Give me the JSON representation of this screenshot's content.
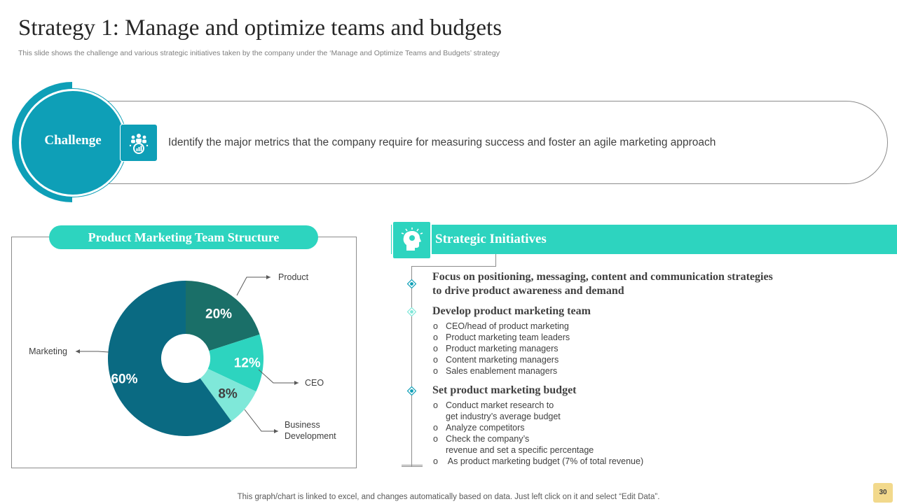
{
  "header": {
    "title": "Strategy 1: Manage and optimize teams and budgets",
    "subtitle": "This slide shows the challenge and various strategic initiatives taken by the company under the ‘Manage and Optimize Teams and Budgets’ strategy"
  },
  "challenge": {
    "label": "Challenge",
    "text": "Identify  the major metrics that the company require for measuring success and foster an agile marketing approach",
    "icon": "team-analytics-icon"
  },
  "team_structure": {
    "header": "Product Marketing Team Structure"
  },
  "chart_data": {
    "type": "pie",
    "categories": [
      "Product",
      "CEO",
      "Business Development",
      "Marketing"
    ],
    "values": [
      20,
      12,
      8,
      60
    ],
    "value_labels": [
      "20%",
      "12%",
      "8%",
      "60%"
    ],
    "callout_labels": [
      "Product",
      "CEO",
      "Business\nDevelopment",
      "Marketing"
    ],
    "colors": [
      "#1a6f68",
      "#2dd4bf",
      "#7fe8d9",
      "#0a6a82"
    ],
    "donut": true
  },
  "initiatives": {
    "title": "Strategic Initiatives",
    "icon": "head-idea-icon",
    "groups": [
      {
        "heading_lines": [
          "Focus on positioning, messaging, content and communication strategies",
          "to drive product awareness and demand"
        ],
        "items": []
      },
      {
        "heading_lines": [
          "Develop product marketing team"
        ],
        "items": [
          "CEO/head of product marketing",
          "Product marketing team leaders",
          "Product marketing managers",
          "Content marketing managers",
          "Sales enablement  managers"
        ]
      },
      {
        "heading_lines": [
          "Set product marketing budget"
        ],
        "items": [
          "Conduct market research to",
          "get industry’s average  budget",
          "Analyze competitors",
          "Check the company’s",
          "revenue  and set a specific percentage",
          " As product marketing budget (7% of total revenue)"
        ]
      }
    ],
    "bullet_marker": "o"
  },
  "footer": {
    "note": "This graph/chart is linked to excel,  and changes automatically based on data. Just left click on it and select “Edit Data”.",
    "page_number": "30"
  }
}
